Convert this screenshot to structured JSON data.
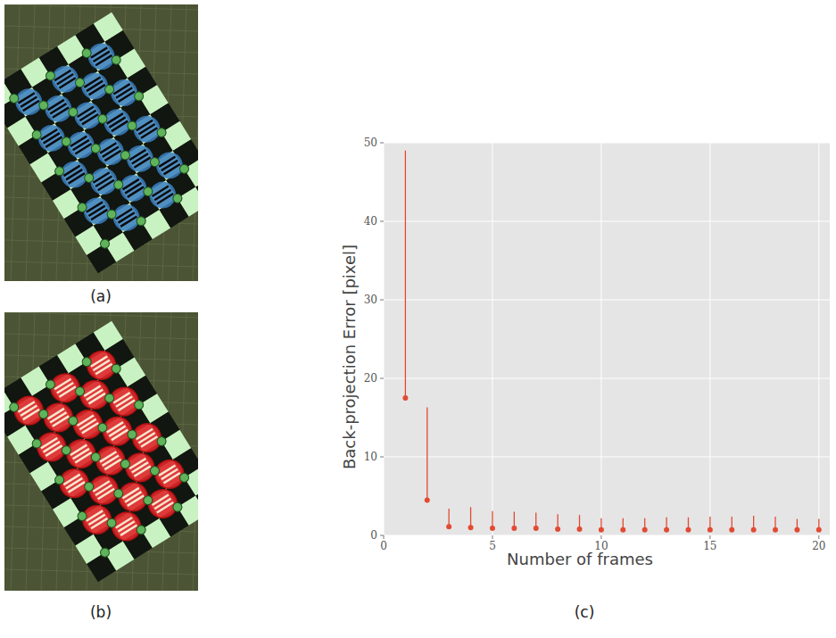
{
  "panels": [
    {
      "label": "(a)"
    },
    {
      "label": "(b)"
    },
    {
      "label": "(c)"
    }
  ],
  "chart_data": {
    "type": "scatter",
    "marker": "circle",
    "color": "#e24a33",
    "grid": true,
    "xlabel": "Number of frames",
    "ylabel": "Back-projection Error [pixel]",
    "x": [
      1,
      2,
      3,
      4,
      5,
      6,
      7,
      8,
      9,
      10,
      11,
      12,
      13,
      14,
      15,
      16,
      17,
      18,
      19,
      20
    ],
    "values": [
      17.5,
      4.5,
      1.1,
      1.0,
      0.9,
      0.9,
      0.9,
      0.8,
      0.8,
      0.7,
      0.7,
      0.7,
      0.7,
      0.7,
      0.7,
      0.7,
      0.7,
      0.7,
      0.7,
      0.7
    ],
    "errors": [
      31.5,
      11.8,
      2.3,
      2.6,
      2.2,
      2.1,
      2.0,
      1.9,
      1.8,
      1.5,
      1.5,
      1.5,
      1.6,
      1.6,
      1.7,
      1.7,
      1.8,
      1.7,
      1.4,
      1.4
    ],
    "xlim": [
      0,
      20.5
    ],
    "ylim": [
      0,
      50
    ],
    "xticks": [
      0,
      5,
      10,
      15,
      20
    ],
    "yticks": [
      0,
      10,
      20,
      30,
      40,
      50
    ]
  }
}
